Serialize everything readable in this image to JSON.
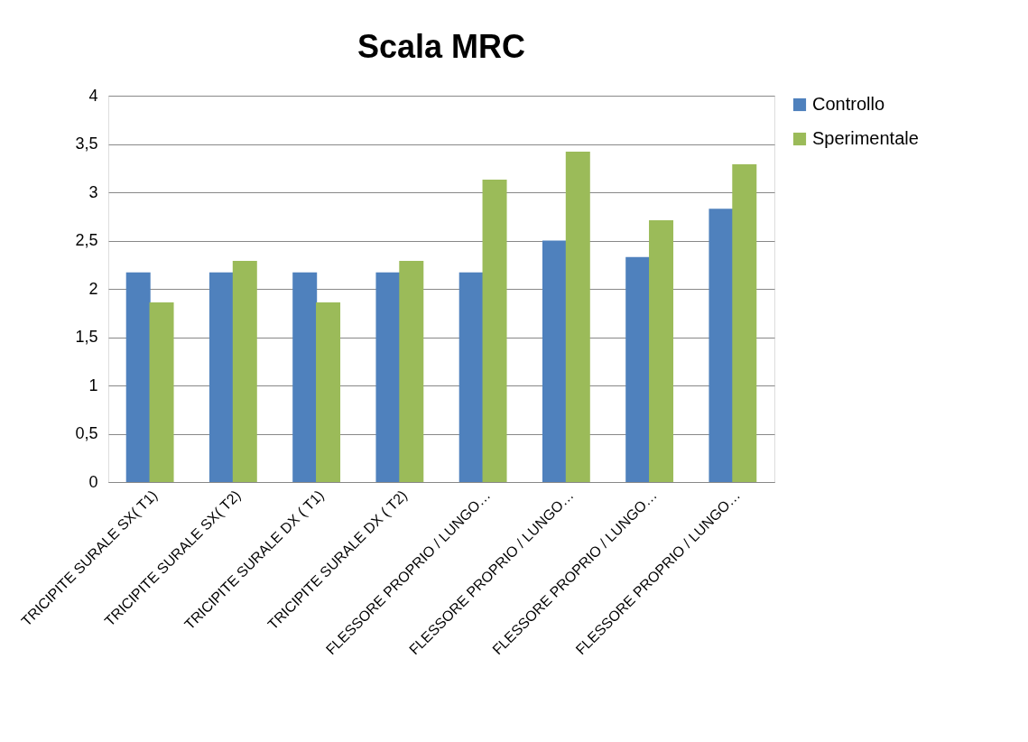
{
  "chart_data": {
    "type": "bar",
    "title": "Scala MRC",
    "categories": [
      "TRICIPITE SURALE SX( T1)",
      "TRICIPITE SURALE SX( T2)",
      "TRICIPITE SURALE DX ( T1)",
      "TRICIPITE SURALE DX ( T2)",
      "FLESSORE PROPRIO / LUNGO…",
      "FLESSORE PROPRIO / LUNGO…",
      "FLESSORE PROPRIO / LUNGO…",
      "FLESSORE PROPRIO / LUNGO…"
    ],
    "series": [
      {
        "name": "Controllo",
        "color": "#4f81bd",
        "values": [
          2.17,
          2.17,
          2.17,
          2.17,
          2.17,
          2.5,
          2.33,
          2.83
        ]
      },
      {
        "name": "Sperimentale",
        "color": "#9bbb59",
        "values": [
          1.86,
          2.29,
          1.86,
          2.29,
          3.13,
          3.42,
          2.71,
          3.29
        ]
      }
    ],
    "ylim": [
      0,
      4
    ],
    "yticks": [
      0,
      {
        "value": 0.5,
        "label": "0,5"
      },
      1,
      {
        "value": 1.5,
        "label": "1,5"
      },
      2,
      {
        "value": 2.5,
        "label": "2,5"
      },
      3,
      {
        "value": 3.5,
        "label": "3,5"
      },
      4
    ],
    "grid": "y",
    "legend": "right"
  }
}
